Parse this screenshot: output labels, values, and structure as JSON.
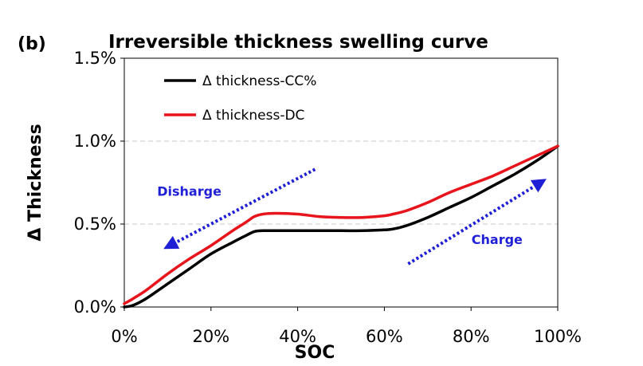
{
  "panel_label": "(b)",
  "chart_data": {
    "type": "line",
    "title": "Irreversible thickness swelling curve",
    "xlabel": "SOC",
    "ylabel": "Δ Thickness",
    "xlim": [
      0,
      100
    ],
    "ylim": [
      0.0,
      1.5
    ],
    "xticks": [
      0,
      20,
      40,
      60,
      80,
      100
    ],
    "yticks": [
      0.0,
      0.5,
      1.0,
      1.5
    ],
    "xtick_labels": [
      "0%",
      "20%",
      "40%",
      "60%",
      "80%",
      "100%"
    ],
    "ytick_labels": [
      "0.0%",
      "0.5%",
      "1.0%",
      "1.5%"
    ],
    "grid": "horizontal dashed at 0.5% and 1.0%",
    "legend_position": "top-left",
    "series": [
      {
        "name": "Δ thickness-CC%",
        "color": "#000000",
        "x": [
          0,
          2,
          5,
          10,
          15,
          20,
          25,
          28,
          30,
          32,
          35,
          40,
          45,
          50,
          55,
          60,
          62,
          65,
          70,
          75,
          80,
          85,
          90,
          95,
          100
        ],
        "y": [
          0.0,
          0.01,
          0.05,
          0.14,
          0.23,
          0.32,
          0.39,
          0.43,
          0.455,
          0.46,
          0.46,
          0.46,
          0.46,
          0.46,
          0.46,
          0.465,
          0.47,
          0.49,
          0.54,
          0.6,
          0.66,
          0.73,
          0.8,
          0.88,
          0.97
        ]
      },
      {
        "name": "Δ thickness-DC",
        "color": "#e8141c",
        "x": [
          0,
          2,
          5,
          10,
          15,
          20,
          25,
          28,
          30,
          32,
          35,
          40,
          45,
          50,
          55,
          60,
          62,
          65,
          70,
          75,
          80,
          85,
          90,
          95,
          100
        ],
        "y": [
          0.02,
          0.05,
          0.1,
          0.2,
          0.29,
          0.37,
          0.46,
          0.51,
          0.545,
          0.56,
          0.565,
          0.56,
          0.545,
          0.54,
          0.54,
          0.55,
          0.56,
          0.58,
          0.63,
          0.69,
          0.74,
          0.79,
          0.85,
          0.91,
          0.97
        ]
      }
    ],
    "annotations": [
      {
        "text": "Disharge",
        "color": "#1f1fd6",
        "arrow_from": [
          44,
          0.83
        ],
        "arrow_to": [
          10.5,
          0.37
        ],
        "label_at": [
          15,
          0.67
        ]
      },
      {
        "text": "Charge",
        "color": "#1f1fd6",
        "arrow_from": [
          65.5,
          0.26
        ],
        "arrow_to": [
          96,
          0.75
        ],
        "label_at": [
          86,
          0.38
        ]
      }
    ]
  }
}
